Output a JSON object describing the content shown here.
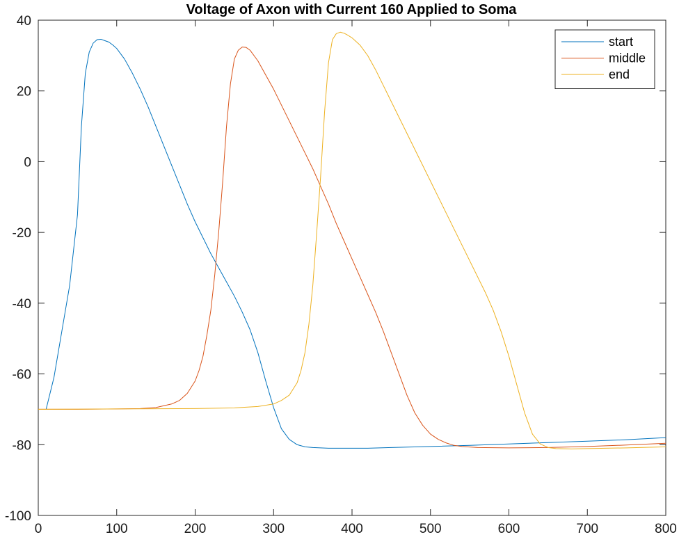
{
  "chart_data": {
    "type": "line",
    "title": "Voltage of Axon with Current 160 Applied to Soma",
    "xlabel": "",
    "ylabel": "",
    "xlim": [
      0,
      800
    ],
    "ylim": [
      -100,
      40
    ],
    "xticks": [
      0,
      100,
      200,
      300,
      400,
      500,
      600,
      700,
      800
    ],
    "yticks": [
      -100,
      -80,
      -60,
      -40,
      -20,
      0,
      20,
      40
    ],
    "grid": false,
    "legend_position": "top-right",
    "series": [
      {
        "name": "start",
        "color": "#0072BD",
        "x": [
          10,
          20,
          30,
          40,
          50,
          55,
          60,
          65,
          70,
          75,
          80,
          85,
          90,
          95,
          100,
          110,
          120,
          130,
          140,
          150,
          160,
          170,
          180,
          190,
          200,
          210,
          220,
          230,
          240,
          250,
          260,
          270,
          280,
          290,
          300,
          310,
          320,
          330,
          340,
          350,
          360,
          370,
          380,
          390,
          400,
          420,
          450,
          500,
          550,
          600,
          650,
          700,
          750,
          800
        ],
        "y": [
          -70,
          -61,
          -48,
          -35,
          -15,
          10,
          25,
          31,
          33.5,
          34.5,
          34.6,
          34.2,
          33.8,
          33,
          32,
          29,
          25,
          20.5,
          15.5,
          10,
          4.5,
          -1,
          -6.5,
          -12,
          -17,
          -21.5,
          -26,
          -30,
          -34,
          -38,
          -42.5,
          -47.5,
          -54,
          -62,
          -69.5,
          -75.5,
          -78.5,
          -80,
          -80.6,
          -80.8,
          -80.9,
          -81,
          -81,
          -81,
          -81,
          -81,
          -80.8,
          -80.5,
          -80.2,
          -79.8,
          -79.4,
          -79,
          -78.6,
          -78
        ]
      },
      {
        "name": "middle",
        "color": "#D95319",
        "x": [
          0,
          50,
          100,
          130,
          150,
          170,
          180,
          190,
          200,
          205,
          210,
          215,
          220,
          225,
          230,
          235,
          240,
          245,
          250,
          255,
          260,
          265,
          270,
          280,
          290,
          300,
          310,
          320,
          330,
          340,
          350,
          360,
          370,
          380,
          390,
          400,
          410,
          420,
          430,
          440,
          450,
          460,
          470,
          480,
          490,
          500,
          510,
          520,
          530,
          540,
          560,
          600,
          650,
          700,
          750,
          800
        ],
        "y": [
          -70,
          -70,
          -69.9,
          -69.8,
          -69.5,
          -68.5,
          -67.5,
          -65.5,
          -62,
          -59,
          -55,
          -49,
          -42,
          -32,
          -20,
          -6,
          10,
          22,
          29,
          31.5,
          32.4,
          32.3,
          31.5,
          28.5,
          24.5,
          20.5,
          16,
          11.5,
          7,
          2.5,
          -2,
          -7,
          -12,
          -17.5,
          -22.5,
          -27.5,
          -32.5,
          -37.5,
          -42.5,
          -48,
          -54,
          -60,
          -66,
          -71,
          -74.5,
          -77,
          -78.5,
          -79.5,
          -80.2,
          -80.5,
          -80.8,
          -80.9,
          -80.8,
          -80.5,
          -80.1,
          -79.6
        ]
      },
      {
        "name": "end",
        "color": "#EDB120",
        "x": [
          0,
          100,
          200,
          250,
          280,
          300,
          310,
          320,
          330,
          335,
          340,
          345,
          350,
          355,
          360,
          365,
          370,
          375,
          380,
          385,
          390,
          395,
          400,
          410,
          420,
          430,
          440,
          450,
          460,
          470,
          480,
          490,
          500,
          510,
          520,
          530,
          540,
          550,
          560,
          570,
          580,
          590,
          600,
          610,
          620,
          630,
          640,
          650,
          660,
          680,
          700,
          750,
          800
        ],
        "y": [
          -70,
          -69.9,
          -69.8,
          -69.6,
          -69.2,
          -68.5,
          -67.5,
          -66,
          -62.5,
          -59,
          -54,
          -46,
          -35,
          -20,
          -4,
          14,
          28,
          34.5,
          36.2,
          36.6,
          36.3,
          35.7,
          35,
          33,
          30,
          26,
          21.5,
          17,
          12.5,
          8,
          3.5,
          -1,
          -5.5,
          -10,
          -14.5,
          -19,
          -23.5,
          -28,
          -32.5,
          -37,
          -42,
          -48,
          -55,
          -63,
          -71,
          -77,
          -79.8,
          -80.8,
          -81.1,
          -81.2,
          -81.1,
          -80.9,
          -80.6
        ]
      }
    ]
  }
}
